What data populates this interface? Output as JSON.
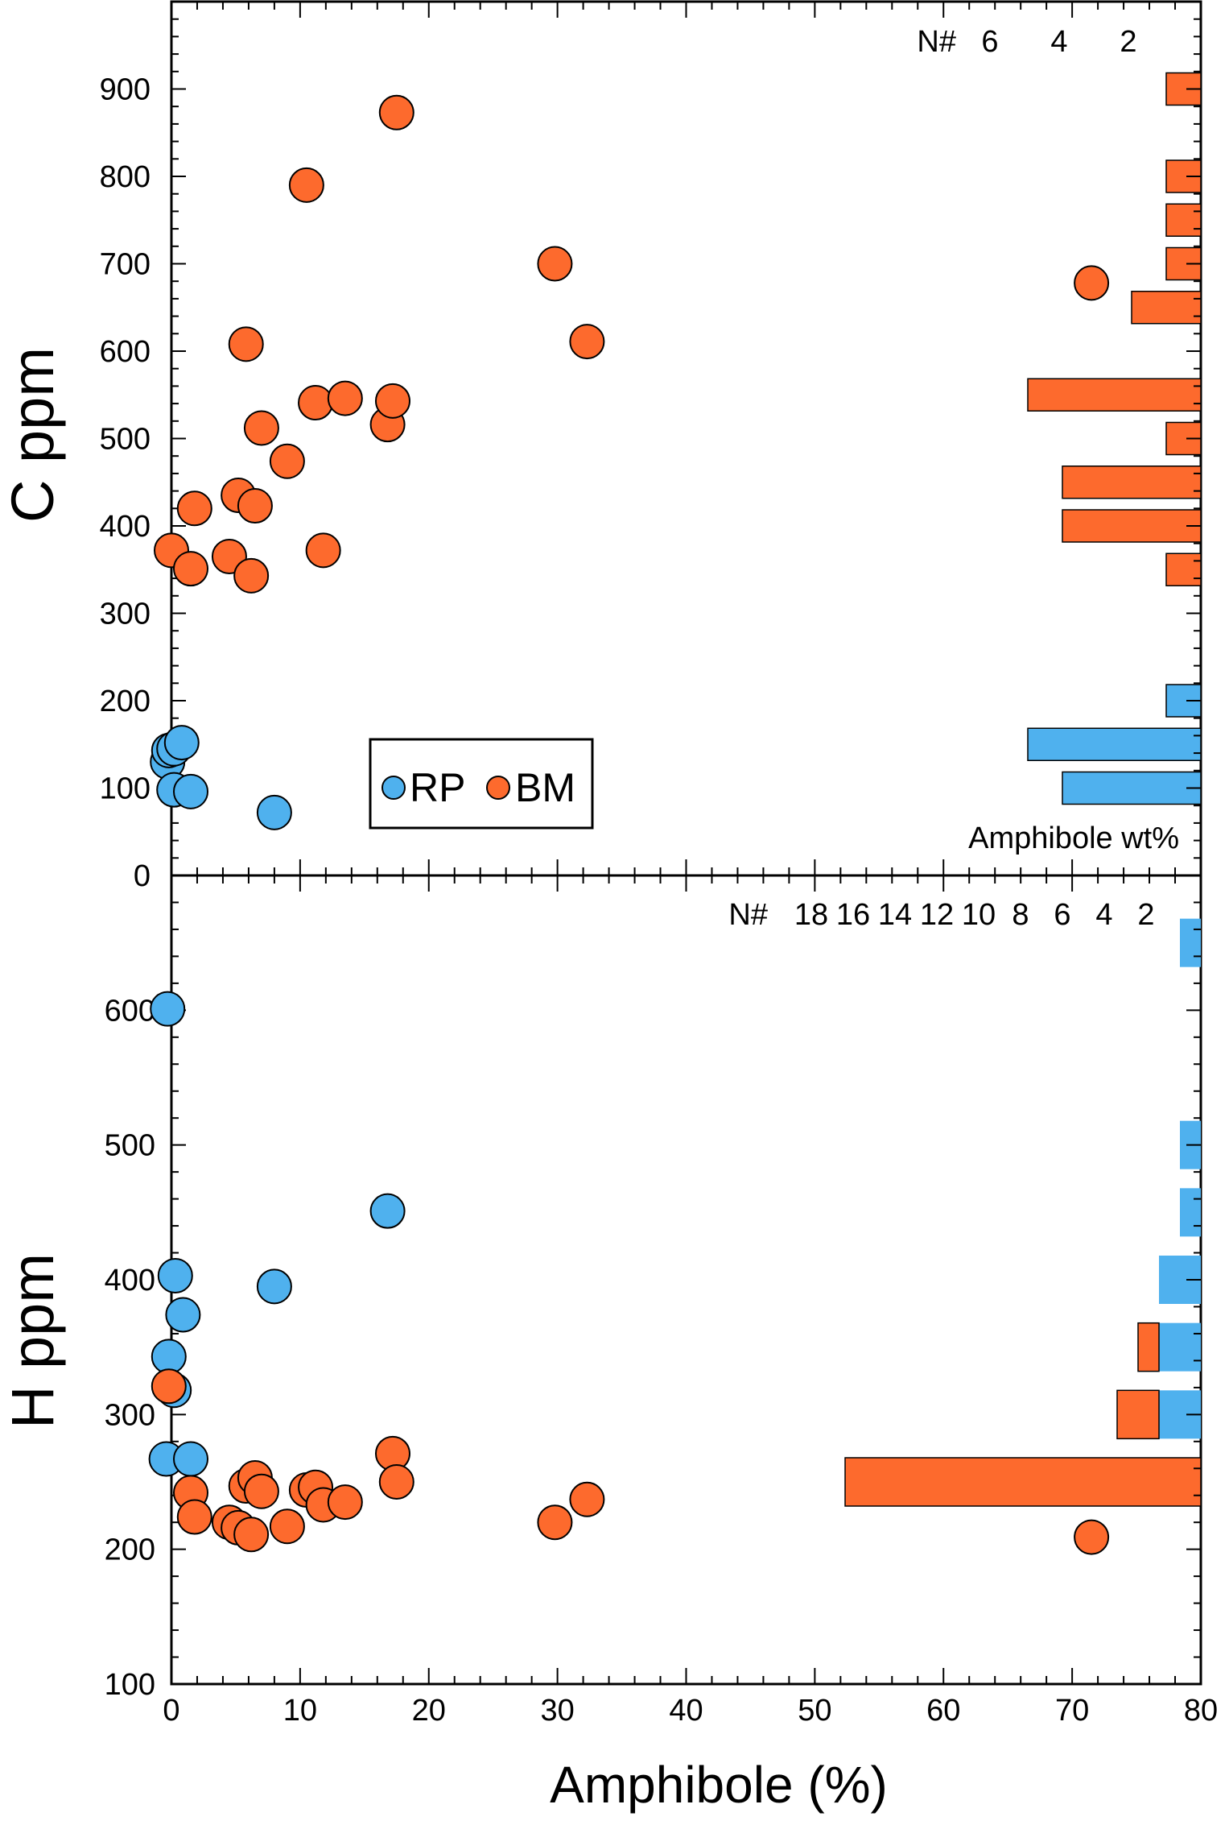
{
  "colors": {
    "RP": "#4fb1ee",
    "BM": "#fd6a2d"
  },
  "legend": {
    "labels": [
      "RP",
      "BM"
    ]
  },
  "chart_data": [
    {
      "type": "scatter",
      "panel": "top",
      "title": "",
      "xlabel": "Amphibole (%)",
      "ylabel": "C ppm",
      "xlim": [
        0,
        80
      ],
      "ylim": [
        0,
        1000
      ],
      "y_ticks": [
        0,
        100,
        200,
        300,
        400,
        500,
        600,
        700,
        800,
        900
      ],
      "grid": false,
      "legend_position": "bottom-left",
      "series": [
        {
          "name": "RP",
          "points": [
            [
              -0.3,
              130
            ],
            [
              -0.2,
              143
            ],
            [
              0.2,
              145
            ],
            [
              0.8,
              152
            ],
            [
              0.2,
              98
            ],
            [
              1.5,
              96
            ],
            [
              8.0,
              72
            ]
          ]
        },
        {
          "name": "BM",
          "points": [
            [
              0.0,
              372
            ],
            [
              1.5,
              351
            ],
            [
              1.8,
              420
            ],
            [
              4.5,
              365
            ],
            [
              5.2,
              435
            ],
            [
              5.8,
              608
            ],
            [
              6.2,
              343
            ],
            [
              6.5,
              423
            ],
            [
              7.0,
              512
            ],
            [
              9.0,
              474
            ],
            [
              10.5,
              790
            ],
            [
              11.2,
              541
            ],
            [
              11.8,
              372
            ],
            [
              13.5,
              546
            ],
            [
              16.8,
              516
            ],
            [
              17.2,
              543
            ],
            [
              17.5,
              873
            ],
            [
              29.8,
              700
            ],
            [
              32.3,
              611
            ],
            [
              71.5,
              678
            ]
          ]
        }
      ],
      "histogram": {
        "label": "Amphibole wt%",
        "count_label": "N#",
        "count_ticks": [
          6,
          4,
          2
        ],
        "bins": [
          {
            "center": 900,
            "count": 1,
            "series": "BM"
          },
          {
            "center": 800,
            "count": 1,
            "series": "BM"
          },
          {
            "center": 750,
            "count": 1,
            "series": "BM"
          },
          {
            "center": 700,
            "count": 1,
            "series": "BM"
          },
          {
            "center": 650,
            "count": 2,
            "series": "BM"
          },
          {
            "center": 550,
            "count": 5,
            "series": "BM"
          },
          {
            "center": 500,
            "count": 1,
            "series": "BM"
          },
          {
            "center": 450,
            "count": 4,
            "series": "BM"
          },
          {
            "center": 400,
            "count": 4,
            "series": "BM"
          },
          {
            "center": 350,
            "count": 1,
            "series": "BM"
          },
          {
            "center": 200,
            "count": 1,
            "series": "RP"
          },
          {
            "center": 150,
            "count": 5,
            "series": "RP"
          },
          {
            "center": 100,
            "count": 4,
            "series": "RP"
          }
        ]
      }
    },
    {
      "type": "scatter",
      "panel": "bottom",
      "title": "",
      "xlabel": "Amphibole (%)",
      "ylabel": "H ppm",
      "xlim": [
        0,
        80
      ],
      "ylim": [
        100,
        700
      ],
      "x_ticks": [
        0,
        10,
        20,
        30,
        40,
        50,
        60,
        70,
        80
      ],
      "y_ticks": [
        100,
        200,
        300,
        400,
        500,
        600
      ],
      "grid": false,
      "series": [
        {
          "name": "RP",
          "points": [
            [
              -0.3,
              601
            ],
            [
              0.3,
              403
            ],
            [
              0.9,
              374
            ],
            [
              -0.2,
              343
            ],
            [
              0.2,
              318
            ],
            [
              -0.4,
              267
            ],
            [
              1.5,
              267
            ],
            [
              8.0,
              395
            ],
            [
              16.8,
              451
            ]
          ]
        },
        {
          "name": "BM",
          "points": [
            [
              -0.2,
              321
            ],
            [
              1.5,
              242
            ],
            [
              1.8,
              224
            ],
            [
              4.5,
              220
            ],
            [
              5.2,
              216
            ],
            [
              5.8,
              247
            ],
            [
              6.2,
              211
            ],
            [
              6.5,
              253
            ],
            [
              7.0,
              243
            ],
            [
              9.0,
              217
            ],
            [
              10.5,
              244
            ],
            [
              11.2,
              246
            ],
            [
              11.8,
              233
            ],
            [
              13.5,
              235
            ],
            [
              17.2,
              271
            ],
            [
              17.5,
              250
            ],
            [
              29.8,
              220
            ],
            [
              32.3,
              237
            ],
            [
              71.5,
              209
            ]
          ]
        }
      ],
      "histogram": {
        "count_label": "N#",
        "count_ticks": [
          18,
          16,
          14,
          12,
          10,
          8,
          6,
          4,
          2
        ],
        "bins": [
          {
            "center": 650,
            "RP": 1,
            "BM": 0
          },
          {
            "center": 500,
            "RP": 1,
            "BM": 0
          },
          {
            "center": 450,
            "RP": 1,
            "BM": 0
          },
          {
            "center": 400,
            "RP": 2,
            "BM": 0
          },
          {
            "center": 350,
            "RP": 2,
            "BM": 1
          },
          {
            "center": 300,
            "RP": 2,
            "BM": 2
          },
          {
            "center": 250,
            "RP": 0,
            "BM": 17
          }
        ]
      }
    }
  ]
}
